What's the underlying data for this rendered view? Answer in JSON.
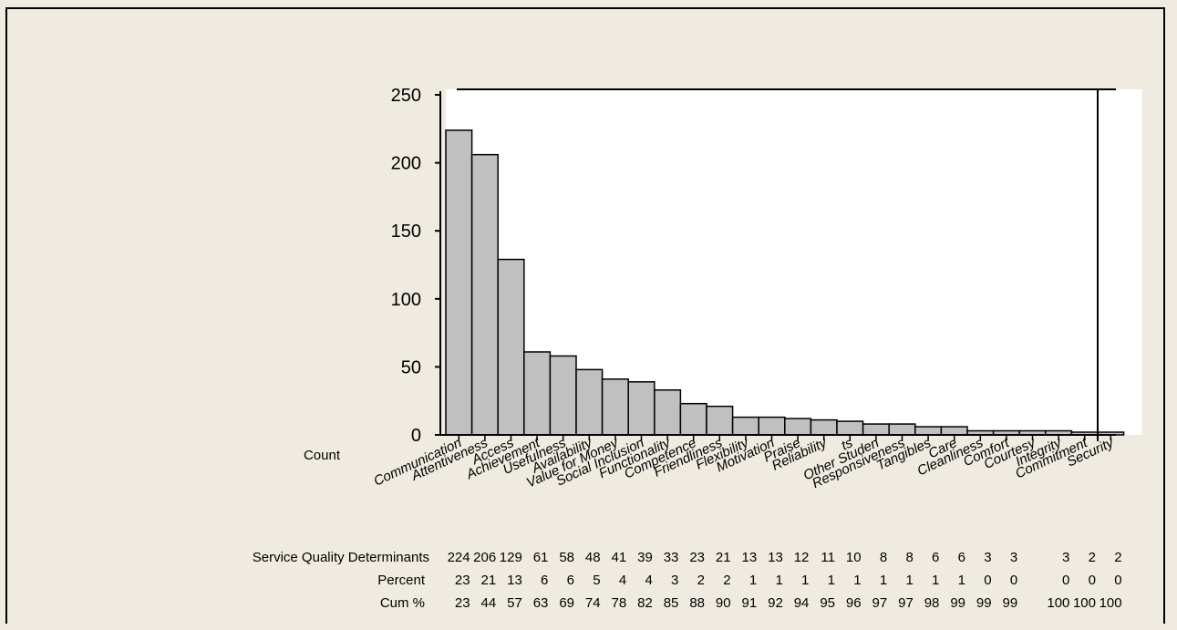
{
  "chart_data": {
    "type": "bar",
    "chart_kind": "pareto",
    "categories": [
      "Communication",
      "Attentiveness",
      "Access",
      "Achievement",
      "Usefulness",
      "Availability",
      "Value for Money",
      "Social Inclusion",
      "Functionality",
      "Competence",
      "Friendliness",
      "Flexibility",
      "Motivation",
      "Praise",
      "Reliability",
      "ts",
      "Other Studen",
      "Responsiveness",
      "Tangibles",
      "Care",
      "Cleanliness",
      "Comfort",
      "Courtesy",
      "Integrity",
      "Commitment",
      "Security"
    ],
    "values": [
      224,
      206,
      129,
      61,
      58,
      48,
      41,
      39,
      33,
      23,
      21,
      13,
      13,
      12,
      11,
      10,
      8,
      8,
      6,
      6,
      3,
      3,
      3,
      3,
      2,
      2
    ],
    "ylabel": "Count",
    "ylim": [
      0,
      250
    ],
    "yticks": [
      0,
      50,
      100,
      150,
      200,
      250
    ],
    "bar_color": "#c0c0c0",
    "table": {
      "counts_label": "Service Quality Determinants",
      "counts": [
        "224",
        "206",
        "129",
        "61",
        "58",
        "48",
        "41",
        "39",
        "33",
        "23",
        "21",
        "13",
        "13",
        "12",
        "11",
        "10",
        "8",
        "8",
        "6",
        "6",
        "3",
        "3",
        "",
        "3",
        "2",
        "2"
      ],
      "percent_label": "Percent",
      "percent": [
        "23",
        "21",
        "13",
        "6",
        "6",
        "5",
        "4",
        "4",
        "3",
        "2",
        "2",
        "1",
        "1",
        "1",
        "1",
        "1",
        "1",
        "1",
        "1",
        "1",
        "0",
        "0",
        "",
        "0",
        "0",
        "0"
      ],
      "cum_label": "Cum %",
      "cum": [
        "23",
        "44",
        "57",
        "63",
        "69",
        "74",
        "78",
        "82",
        "85",
        "88",
        "90",
        "91",
        "92",
        "94",
        "95",
        "96",
        "97",
        "97",
        "98",
        "99",
        "99",
        "99",
        "",
        "100",
        "100",
        "100"
      ]
    },
    "grid": false,
    "legend": "none"
  }
}
